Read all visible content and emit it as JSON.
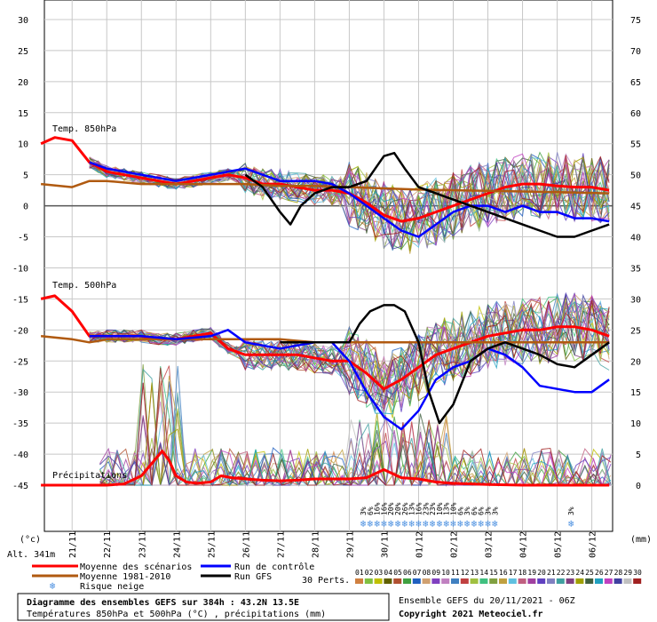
{
  "chart_data": {
    "type": "line",
    "title": "Diagramme des ensembles GEFS sur 384h : 43.2N 13.5E",
    "subtitle": "Températures 850hPa et 500hPa (°C) , précipitations (mm)",
    "ensemble_info": "Ensemble GEFS du 20/11/2021 - 06Z",
    "copyright": "Copyright 2021 Meteociel.fr",
    "altitude": "Alt. 341m",
    "left_unit": "(°c)",
    "right_unit": "(mm)",
    "left_ticks": [
      "30",
      "25",
      "20",
      "15",
      "10",
      "5",
      "0",
      "-5",
      "-10",
      "-15",
      "-20",
      "-25",
      "-30",
      "-35",
      "-40",
      "-45"
    ],
    "right_ticks": [
      "75",
      "70",
      "65",
      "60",
      "55",
      "50",
      "45",
      "40",
      "35",
      "30",
      "25",
      "20",
      "15",
      "10",
      "5",
      "0"
    ],
    "x_ticks": [
      "21/11",
      "22/11",
      "23/11",
      "24/11",
      "25/11",
      "26/11",
      "27/11",
      "28/11",
      "29/11",
      "30/11",
      "01/12",
      "02/12",
      "03/12",
      "04/12",
      "05/12",
      "06/12"
    ],
    "ylim_temp": [
      -45,
      30
    ],
    "ylim_precip": [
      0,
      75
    ],
    "sections": {
      "t850": "Temp. 850hPa",
      "t500": "Temp. 500hPa",
      "precip": "Précipitations"
    },
    "legend": {
      "mean": "Moyenne des scénarios",
      "control": "Run de contrôle",
      "climate": "Moyenne 1981-2010",
      "gfs": "Run GFS",
      "snow": "Risque neige",
      "perts_label": "30 Perts.",
      "pert_numbers": [
        "01",
        "02",
        "03",
        "04",
        "05",
        "06",
        "07",
        "08",
        "09",
        "10",
        "11",
        "12",
        "13",
        "14",
        "15",
        "16",
        "17",
        "18",
        "19",
        "20",
        "21",
        "22",
        "23",
        "24",
        "25",
        "26",
        "27",
        "28",
        "29",
        "30"
      ],
      "pert_colors": [
        "#d08040",
        "#80c040",
        "#c0c000",
        "#606000",
        "#b05030",
        "#40a040",
        "#2060c0",
        "#d0a070",
        "#8040c0",
        "#c080c0",
        "#4080c0",
        "#c04040",
        "#a0c040",
        "#40c080",
        "#80a040",
        "#c0a040",
        "#60c0e0",
        "#c06080",
        "#a040a0",
        "#6040c0",
        "#8080c0",
        "#40a0a0",
        "#804080",
        "#a0a000",
        "#406040",
        "#20a0c0",
        "#c040c0",
        "#4040a0",
        "#c0c0c0",
        "#a02020"
      ]
    },
    "snow_risk": [
      {
        "x": 29.4,
        "label": "3%"
      },
      {
        "x": 29.6,
        "label": "6%"
      },
      {
        "x": 29.8,
        "label": "16%"
      },
      {
        "x": 30.0,
        "label": "16%"
      },
      {
        "x": 30.2,
        "label": "20%"
      },
      {
        "x": 30.4,
        "label": "20%"
      },
      {
        "x": 30.6,
        "label": "26%"
      },
      {
        "x": 30.8,
        "label": "13%"
      },
      {
        "x": 31.0,
        "label": "16%"
      },
      {
        "x": 31.2,
        "label": "23%"
      },
      {
        "x": 31.4,
        "label": "23%"
      },
      {
        "x": 31.6,
        "label": "10%"
      },
      {
        "x": 31.8,
        "label": "13%"
      },
      {
        "x": 32.0,
        "label": "10%"
      },
      {
        "x": 32.2,
        "label": "6%"
      },
      {
        "x": 32.4,
        "label": "3%"
      },
      {
        "x": 32.6,
        "label": "6%"
      },
      {
        "x": 32.8,
        "label": "6%"
      },
      {
        "x": 33.0,
        "label": "3%"
      },
      {
        "x": 33.2,
        "label": "3%"
      },
      {
        "x": 35.4,
        "label": "3%"
      }
    ],
    "series": [
      {
        "name": "Moyenne des scénarios T850",
        "color": "#ff0000",
        "x": [
          20.1,
          20.5,
          21.0,
          21.5,
          22.0,
          22.5,
          23.0,
          23.5,
          24.0,
          24.5,
          25.0,
          25.5,
          26.0,
          26.5,
          27.0,
          27.5,
          28.0,
          28.5,
          29.0,
          29.5,
          30.0,
          30.5,
          31.0,
          31.5,
          32.0,
          32.5,
          33.0,
          33.5,
          34.0,
          34.5,
          35.0,
          35.5,
          36.0,
          36.5
        ],
        "y": [
          10,
          11,
          10.5,
          7,
          5.5,
          5,
          4.5,
          4,
          3.5,
          4,
          4.5,
          5,
          4.5,
          3.5,
          3.5,
          3,
          2.5,
          2.5,
          2,
          0.5,
          -1.5,
          -2.5,
          -2,
          -1,
          0,
          1,
          2,
          3,
          3.5,
          3.5,
          3.2,
          3,
          3,
          2.5
        ]
      },
      {
        "name": "Moyenne 1981-2010 T850",
        "color": "#b05a10",
        "x": [
          20.1,
          21.0,
          21.5,
          22.0,
          23.0,
          24.0,
          25.0,
          26.0,
          27.0,
          28.0,
          29.0,
          30.0,
          31.0,
          32.0,
          33.0,
          34.0,
          35.0,
          36.5
        ],
        "y": [
          3.5,
          3,
          4,
          4,
          3.5,
          3.5,
          3.5,
          3.5,
          3.2,
          3.2,
          3,
          2.8,
          2.6,
          2.5,
          2.4,
          2.3,
          2.2,
          2
        ]
      },
      {
        "name": "Run de contrôle T850",
        "color": "#0000ff",
        "x": [
          21.5,
          22.0,
          23.0,
          24.0,
          25.0,
          26.0,
          26.5,
          27.0,
          28.0,
          28.5,
          29.0,
          29.5,
          30.0,
          30.5,
          31.0,
          31.5,
          32.0,
          32.5,
          33.0,
          33.5,
          34.0,
          34.5,
          35.0,
          35.5,
          36.0,
          36.5
        ],
        "y": [
          7,
          6,
          5,
          4,
          5,
          6,
          5,
          4,
          4,
          3.5,
          2,
          0,
          -2,
          -4,
          -5,
          -3,
          -1,
          0,
          0,
          -1,
          0,
          -1,
          -1,
          -2,
          -2,
          -2.5
        ]
      },
      {
        "name": "Run GFS T850",
        "color": "#000000",
        "x": [
          26.0,
          26.5,
          27.0,
          27.3,
          27.6,
          28.0,
          28.5,
          29.0,
          29.5,
          30.0,
          30.3,
          30.6,
          31.0,
          31.5,
          32.0,
          32.5,
          33.0,
          33.5,
          34.0,
          34.5,
          35.0,
          35.5,
          36.0,
          36.5
        ],
        "y": [
          5,
          3,
          -1,
          -3,
          0,
          2,
          3,
          3,
          4,
          8,
          8.5,
          6,
          3,
          2,
          1,
          0,
          -1,
          -2,
          -3,
          -4,
          -5,
          -5,
          -4,
          -3
        ]
      },
      {
        "name": "Moyenne des scénarios T500",
        "color": "#ff0000",
        "x": [
          20.1,
          20.5,
          21.0,
          21.5,
          22.0,
          22.5,
          23.0,
          23.5,
          24.0,
          24.5,
          25.0,
          25.5,
          26.0,
          26.5,
          27.0,
          27.5,
          28.0,
          28.5,
          29.0,
          29.5,
          30.0,
          30.5,
          31.0,
          31.5,
          32.0,
          32.5,
          33.0,
          33.5,
          34.0,
          34.5,
          35.0,
          35.5,
          36.0,
          36.5
        ],
        "y": [
          -15,
          -14.5,
          -17,
          -21,
          -21,
          -21,
          -21,
          -21.5,
          -21.5,
          -21,
          -20.5,
          -23,
          -24,
          -24,
          -24,
          -24,
          -24.5,
          -25,
          -25,
          -27,
          -29.5,
          -28,
          -26,
          -24,
          -23,
          -22,
          -21,
          -20.5,
          -20,
          -20,
          -19.5,
          -19.5,
          -20,
          -21
        ]
      },
      {
        "name": "Moyenne 1981-2010 T500",
        "color": "#b05a10",
        "x": [
          20.1,
          21.0,
          21.5,
          22.0,
          23.0,
          24.0,
          25.0,
          26.0,
          27.0,
          28.0,
          29.0,
          30.0,
          31.0,
          32.0,
          33.0,
          34.0,
          35.0,
          36.5
        ],
        "y": [
          -21,
          -21.5,
          -22,
          -21.5,
          -21.5,
          -21.5,
          -21.5,
          -21.5,
          -21.5,
          -22,
          -22,
          -22,
          -22,
          -22,
          -22,
          -22,
          -22,
          -22
        ]
      },
      {
        "name": "Run de contrôle T500",
        "color": "#0000ff",
        "x": [
          21.5,
          22.0,
          23.0,
          24.0,
          25.0,
          25.5,
          26.0,
          27.0,
          28.0,
          28.5,
          29.0,
          29.5,
          30.0,
          30.5,
          31.0,
          31.5,
          32.0,
          32.5,
          33.0,
          33.5,
          34.0,
          34.5,
          35.0,
          35.5,
          36.0,
          36.5
        ],
        "y": [
          -21,
          -21,
          -21,
          -21.5,
          -21,
          -20,
          -22,
          -23,
          -22,
          -22,
          -25,
          -30,
          -34,
          -36,
          -33,
          -28,
          -26,
          -25,
          -23,
          -24,
          -26,
          -29,
          -29.5,
          -30,
          -30,
          -28
        ]
      },
      {
        "name": "Run GFS T500",
        "color": "#000000",
        "x": [
          27.0,
          28.0,
          29.0,
          29.3,
          29.6,
          30.0,
          30.3,
          30.6,
          31.0,
          31.3,
          31.6,
          32.0,
          32.5,
          33.0,
          33.5,
          34.0,
          34.5,
          35.0,
          35.5,
          36.0,
          36.5
        ],
        "y": [
          -22,
          -22,
          -22,
          -19,
          -17,
          -16,
          -16,
          -17,
          -22,
          -30,
          -35,
          -32,
          -25,
          -23,
          -22,
          -23,
          -24,
          -25.5,
          -26,
          -24,
          -22
        ]
      },
      {
        "name": "Moyenne des scénarios Précip",
        "color": "#ff0000",
        "x": [
          20.1,
          21.0,
          22.0,
          22.5,
          23.0,
          23.3,
          23.6,
          23.8,
          24.0,
          24.3,
          24.6,
          25.0,
          25.3,
          25.6,
          26.0,
          26.5,
          27.0,
          27.5,
          28.0,
          28.5,
          29.0,
          29.5,
          30.0,
          30.5,
          31.0,
          31.5,
          32.0,
          32.5,
          33.0,
          34.0,
          35.0,
          36.5
        ],
        "y": [
          0,
          0,
          0,
          0.2,
          1.5,
          3.5,
          5.5,
          4,
          1.5,
          0.5,
          0.3,
          0.5,
          1.5,
          1.2,
          1,
          0.8,
          0.7,
          0.8,
          1,
          1,
          1,
          1.2,
          2.5,
          1.2,
          1,
          0.5,
          0.3,
          0.2,
          0.1,
          0,
          0,
          0
        ]
      }
    ]
  }
}
